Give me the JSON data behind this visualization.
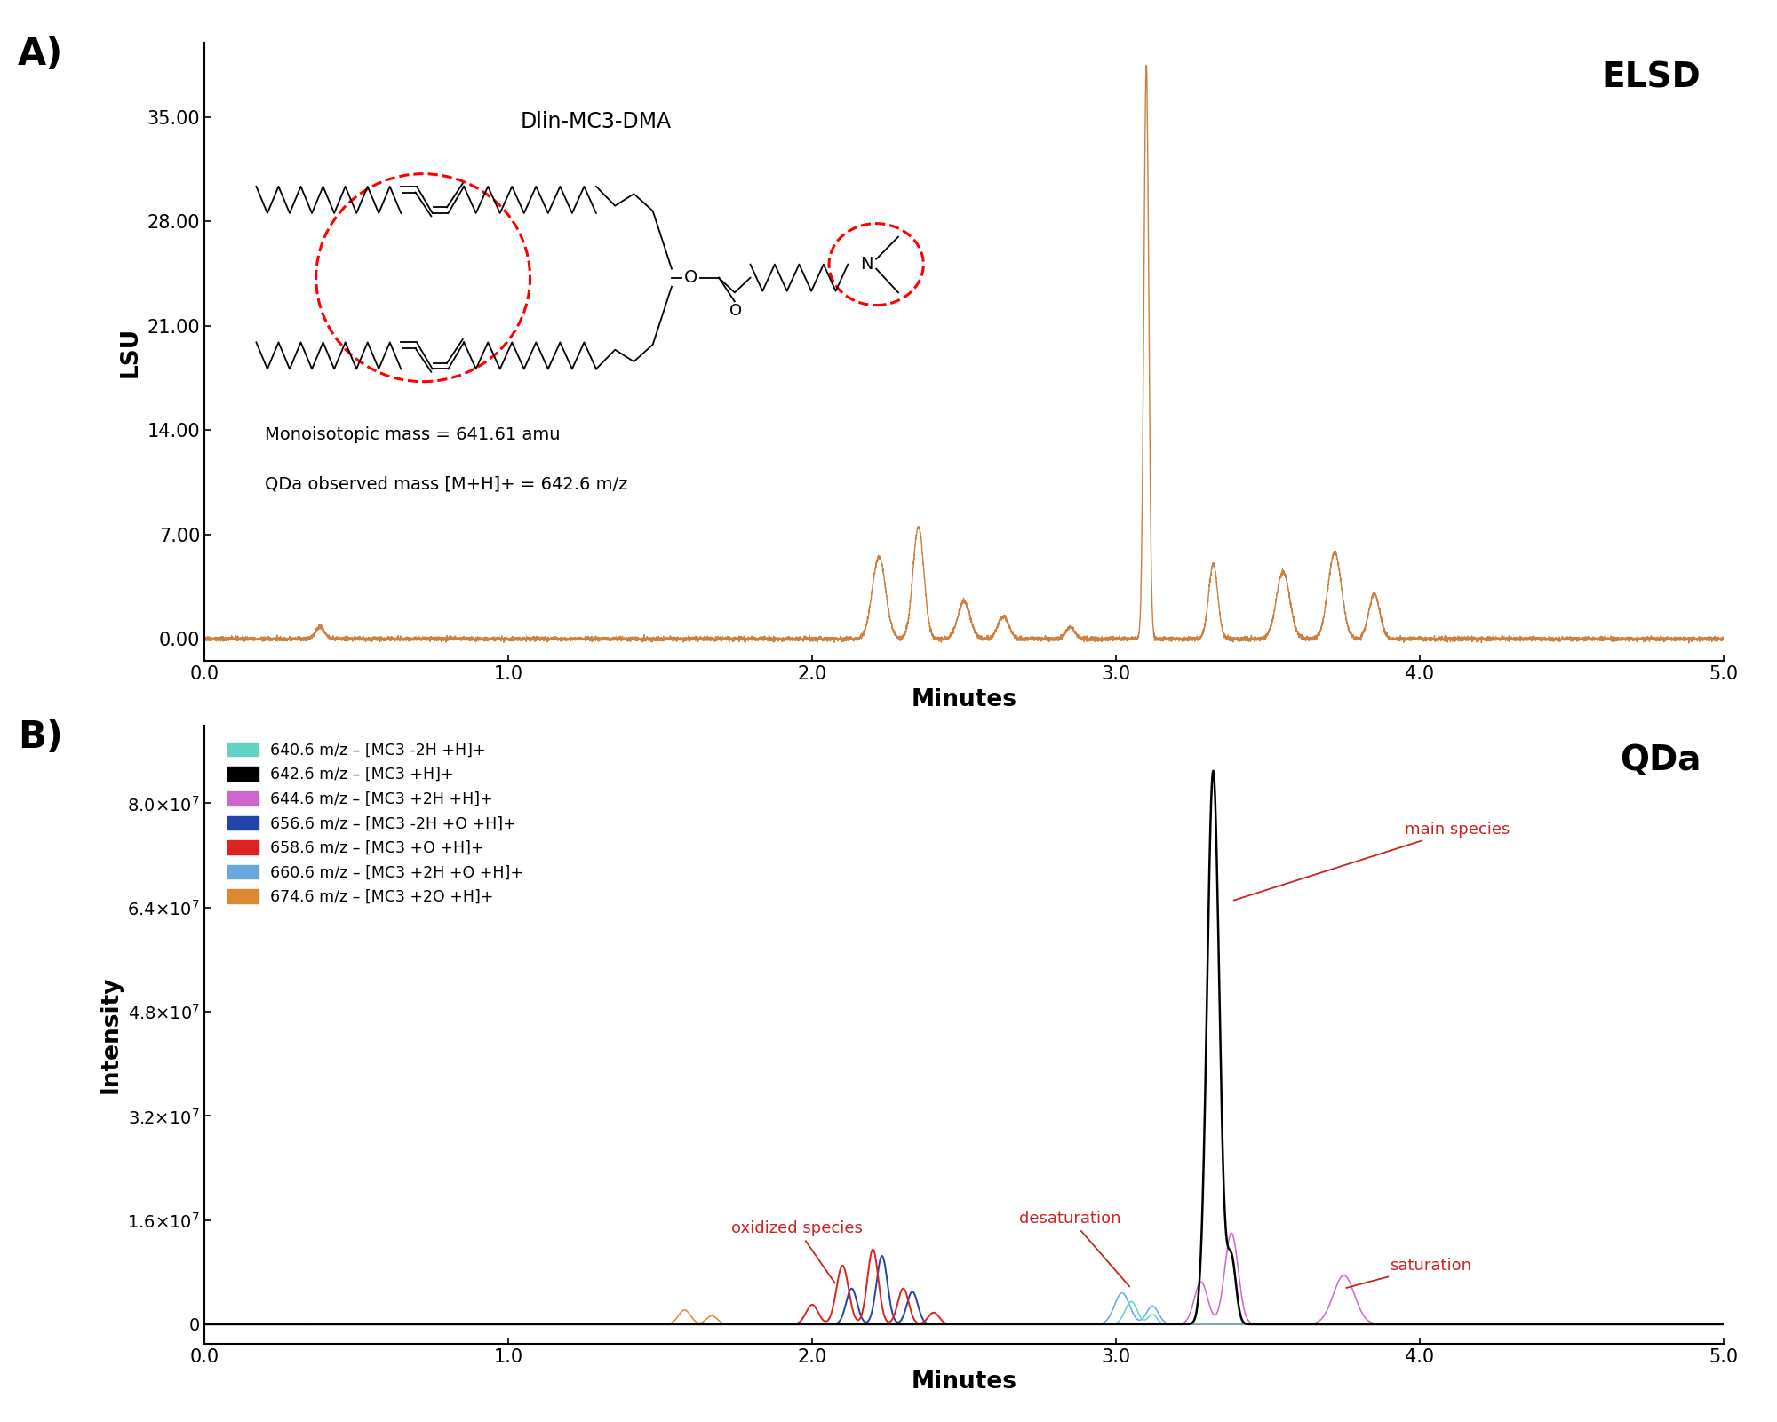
{
  "panel_A": {
    "title": "ELSD",
    "ylabel": "LSU",
    "xlabel": "Minutes",
    "ylim": [
      -1.5,
      40
    ],
    "xlim": [
      0.0,
      5.0
    ],
    "yticks": [
      0.0,
      7.0,
      14.0,
      21.0,
      28.0,
      35.0
    ],
    "ytick_labels": [
      "0.00",
      "7.00",
      "14.00",
      "21.00",
      "28.00",
      "35.00"
    ],
    "xticks": [
      0.0,
      1.0,
      2.0,
      3.0,
      4.0,
      5.0
    ],
    "xtick_labels": [
      "0.0",
      "1.0",
      "2.0",
      "3.0",
      "4.0",
      "5.0"
    ],
    "line_color": "#CD8040",
    "label_A": "A)",
    "inset_title": "Dlin-MC3-DMA",
    "inset_text1": "Monoisotopic mass = 641.61 amu",
    "inset_text2": "QDa observed mass [M+H]+ = 642.6 m/z"
  },
  "panel_B": {
    "title": "QDa",
    "ylabel": "Intensity",
    "xlabel": "Minutes",
    "ylim": [
      -3000000.0,
      92000000.0
    ],
    "xlim": [
      0.0,
      5.0
    ],
    "yticks": [
      0,
      16000000.0,
      32000000.0,
      48000000.0,
      64000000.0,
      80000000.0
    ],
    "ytick_labels": [
      "0",
      "1.6x10^7",
      "3.2x10^7",
      "4.8x10^7",
      "6.4x10^7",
      "8.0x10^7"
    ],
    "xticks": [
      0.0,
      1.0,
      2.0,
      3.0,
      4.0,
      5.0
    ],
    "xtick_labels": [
      "0.0",
      "1.0",
      "2.0",
      "3.0",
      "4.0",
      "5.0"
    ],
    "label_B": "B)",
    "legend_entries": [
      {
        "label": "640.6 m/z – [MC3 -2H +H]+",
        "color": "#5FD3C4"
      },
      {
        "label": "642.6 m/z – [MC3 +H]+",
        "color": "#000000"
      },
      {
        "label": "644.6 m/z – [MC3 +2H +H]+",
        "color": "#CC66CC"
      },
      {
        "label": "656.6 m/z – [MC3 -2H +O +H]+",
        "color": "#2244AA"
      },
      {
        "label": "658.6 m/z – [MC3 +O +H]+",
        "color": "#DD2222"
      },
      {
        "label": "660.6 m/z – [MC3 +2H +O +H]+",
        "color": "#66AADD"
      },
      {
        "label": "674.6 m/z – [MC3 +2O +H]+",
        "color": "#DD8833"
      }
    ]
  },
  "orange_color": "#CD8040",
  "background": "#FFFFFF"
}
